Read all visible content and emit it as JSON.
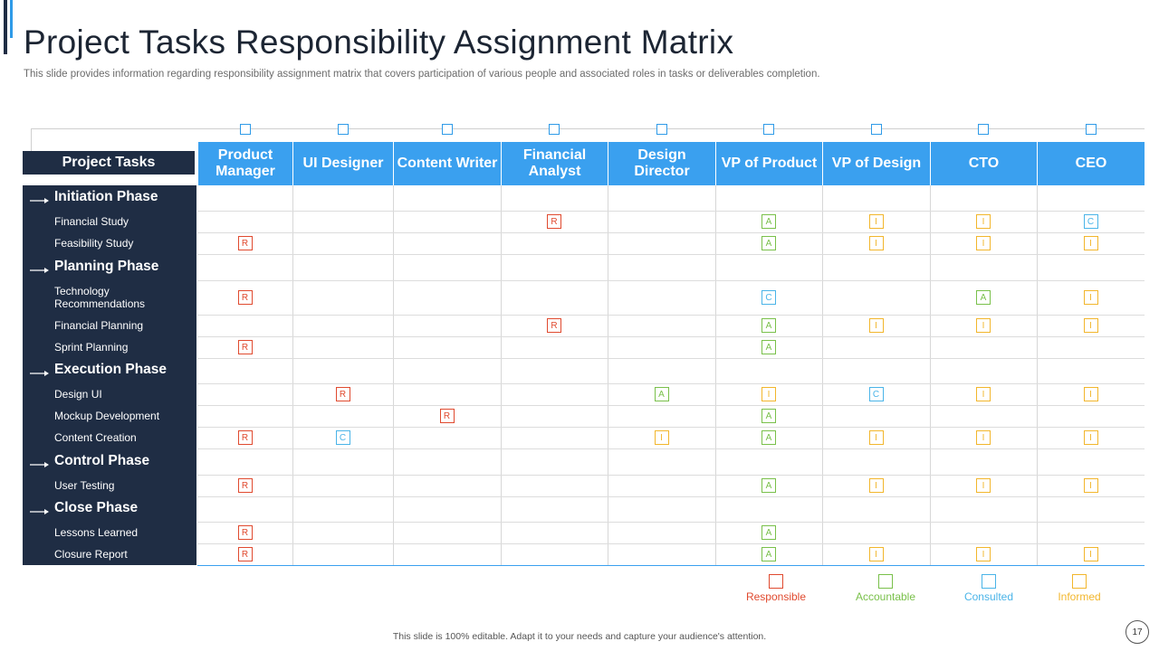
{
  "title": "Project Tasks Responsibility Assignment Matrix",
  "subtitle": "This slide provides information regarding responsibility assignment matrix that covers participation of various people and associated roles in tasks or deliverables completion.",
  "tasks_header": "Project Tasks",
  "columns": [
    "Product Manager",
    "UI Designer",
    "Content Writer",
    "Financial Analyst",
    "Design Director",
    "VP of Product",
    "VP of Design",
    "CTO",
    "CEO"
  ],
  "rows": [
    {
      "type": "phase",
      "label": "Initiation Phase"
    },
    {
      "type": "task",
      "label": "Financial Study",
      "cells": [
        "",
        "",
        "",
        "R",
        "",
        "A",
        "I",
        "I",
        "C"
      ]
    },
    {
      "type": "task",
      "label": "Feasibility Study",
      "cells": [
        "R",
        "",
        "",
        "",
        "",
        "A",
        "I",
        "I",
        "I"
      ]
    },
    {
      "type": "phase",
      "label": "Planning Phase"
    },
    {
      "type": "task",
      "label": "Technology Recommendations",
      "cells": [
        "R",
        "",
        "",
        "",
        "",
        "C",
        "",
        "A",
        "I"
      ]
    },
    {
      "type": "task",
      "label": "Financial Planning",
      "cells": [
        "",
        "",
        "",
        "R",
        "",
        "A",
        "I",
        "I",
        "I"
      ]
    },
    {
      "type": "task",
      "label": "Sprint Planning",
      "cells": [
        "R",
        "",
        "",
        "",
        "",
        "A",
        "",
        "",
        ""
      ]
    },
    {
      "type": "phase",
      "label": "Execution Phase"
    },
    {
      "type": "task",
      "label": "Design UI",
      "cells": [
        "",
        "R",
        "",
        "",
        "A",
        "I",
        "C",
        "I",
        "I"
      ]
    },
    {
      "type": "task",
      "label": "Mockup Development",
      "cells": [
        "",
        "",
        "R",
        "",
        "",
        "A",
        "",
        "",
        ""
      ]
    },
    {
      "type": "task",
      "label": "Content Creation",
      "cells": [
        "R",
        "C",
        "",
        "",
        "I",
        "A",
        "I",
        "I",
        "I"
      ]
    },
    {
      "type": "phase",
      "label": "Control Phase"
    },
    {
      "type": "task",
      "label": "User Testing",
      "cells": [
        "R",
        "",
        "",
        "",
        "",
        "A",
        "I",
        "I",
        "I"
      ]
    },
    {
      "type": "phase",
      "label": "Close Phase"
    },
    {
      "type": "task",
      "label": "Lessons Learned",
      "cells": [
        "R",
        "",
        "",
        "",
        "",
        "A",
        "",
        "",
        ""
      ]
    },
    {
      "type": "task",
      "label": "Closure Report",
      "cells": [
        "R",
        "",
        "",
        "",
        "",
        "A",
        "I",
        "I",
        "I"
      ]
    }
  ],
  "legend": [
    {
      "code": "R",
      "label": "Responsible",
      "color": "#e04a2f"
    },
    {
      "code": "A",
      "label": "Accountable",
      "color": "#79c04a"
    },
    {
      "code": "C",
      "label": "Consulted",
      "color": "#4ab4e8"
    },
    {
      "code": "I",
      "label": "Informed",
      "color": "#f2b62c"
    }
  ],
  "colors": {
    "navy": "#1f2d44",
    "header_blue": "#3aa0ef",
    "R": "#e04a2f",
    "A": "#79c04a",
    "C": "#4ab4e8",
    "I": "#f2b62c"
  },
  "footer": "This slide is 100% editable. Adapt it to your needs and capture your audience's attention.",
  "page_number": "17"
}
